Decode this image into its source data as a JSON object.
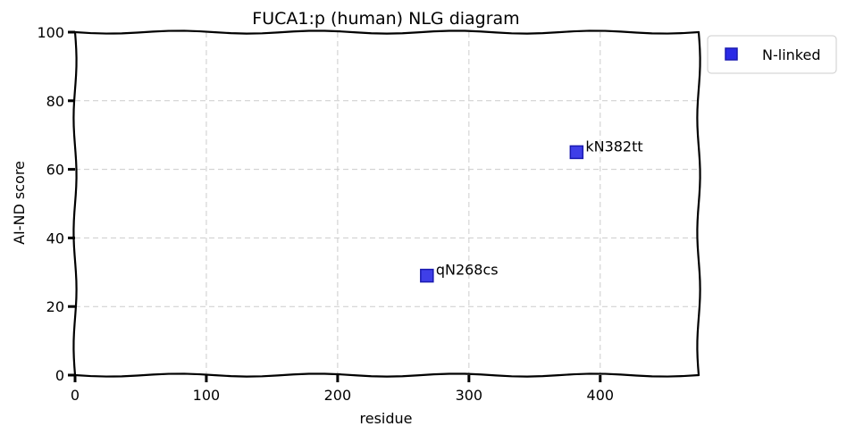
{
  "chart_data": {
    "type": "scatter",
    "title": "FUCA1:p (human) NLG diagram",
    "xlabel": "residue",
    "ylabel": "AI-ND score",
    "xlim": [
      0,
      475
    ],
    "ylim": [
      0,
      100
    ],
    "xticks": [
      0,
      100,
      200,
      300,
      400
    ],
    "yticks": [
      0,
      20,
      40,
      60,
      80,
      100
    ],
    "grid": true,
    "legend_position": "outside-top-right",
    "series": [
      {
        "name": "N-linked",
        "color": "#2a2ae6",
        "marker": "square",
        "points": [
          {
            "x": 268,
            "y": 29,
            "label": "qN268cs"
          },
          {
            "x": 382,
            "y": 65,
            "label": "kN382tt"
          }
        ]
      }
    ]
  }
}
